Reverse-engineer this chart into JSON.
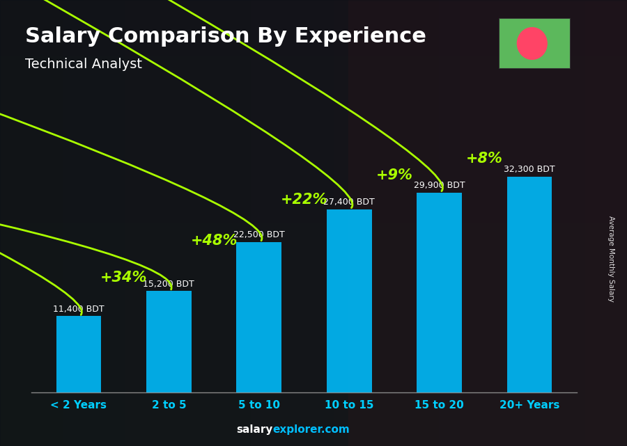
{
  "title": "Salary Comparison By Experience",
  "subtitle": "Technical Analyst",
  "ylabel": "Average Monthly Salary",
  "watermark_bold": "salary",
  "watermark_normal": "explorer.com",
  "categories": [
    "< 2 Years",
    "2 to 5",
    "5 to 10",
    "10 to 15",
    "15 to 20",
    "20+ Years"
  ],
  "values": [
    11400,
    15200,
    22500,
    27400,
    29900,
    32300
  ],
  "labels": [
    "11,400 BDT",
    "15,200 BDT",
    "22,500 BDT",
    "27,400 BDT",
    "29,900 BDT",
    "32,300 BDT"
  ],
  "pct_changes": [
    "+34%",
    "+48%",
    "+22%",
    "+9%",
    "+8%"
  ],
  "bar_color": "#00BFFF",
  "pct_color": "#AAFF00",
  "label_color": "#FFFFFF",
  "title_color": "#FFFFFF",
  "flag_green": "#5CB85C",
  "flag_red": "#FF4466",
  "ylim": [
    0,
    40000
  ],
  "bar_width": 0.5,
  "arc_rads": [
    -0.5,
    -0.5,
    -0.5,
    -0.5,
    -0.5
  ],
  "pct_fontsize": 15,
  "label_fontsize": 9,
  "cat_fontsize": 11,
  "title_fontsize": 22,
  "subtitle_fontsize": 14
}
